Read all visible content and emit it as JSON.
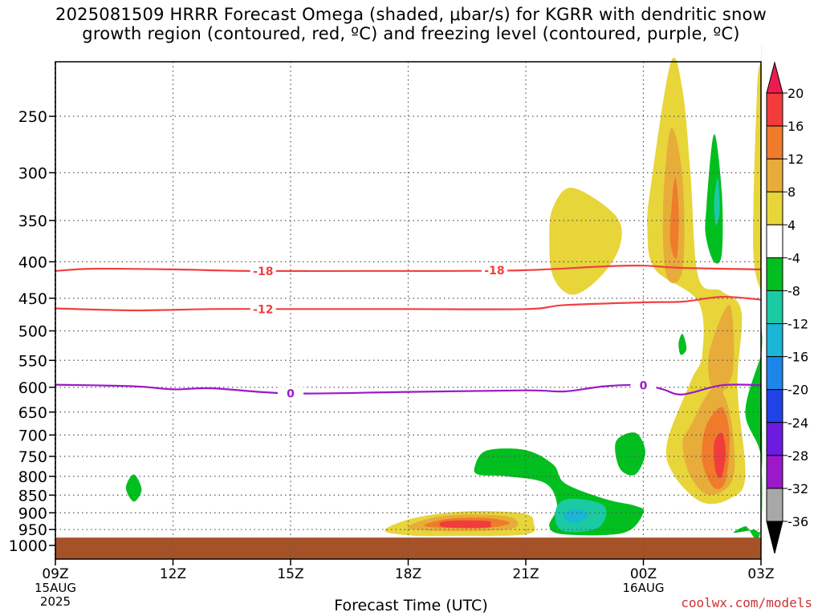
{
  "title": {
    "line1": "2025081509 HRRR Forecast Omega (shaded, μbar/s) for KGRR with dendritic snow",
    "line2": "growth region (contoured, red, ºC) and freezing level (contoured, purple, ºC)"
  },
  "watermark": "coolwx.com/models",
  "chart_data": {
    "type": "heatmap",
    "xlabel": "Forecast Time (UTC)",
    "ylabel": "",
    "x_range_hours": [
      0,
      18
    ],
    "y_range_hpa": [
      1000,
      200
    ],
    "x_ticks": [
      {
        "hour": 0,
        "label": "09Z",
        "sub1": "15AUG",
        "sub2": "2025"
      },
      {
        "hour": 3,
        "label": "12Z"
      },
      {
        "hour": 6,
        "label": "15Z"
      },
      {
        "hour": 9,
        "label": "18Z"
      },
      {
        "hour": 12,
        "label": "21Z"
      },
      {
        "hour": 15,
        "label": "00Z",
        "sub1": "16AUG"
      },
      {
        "hour": 18,
        "label": "03Z"
      }
    ],
    "y_ticks": [
      250,
      300,
      350,
      400,
      450,
      500,
      550,
      600,
      650,
      700,
      750,
      800,
      850,
      900,
      950,
      1000
    ],
    "grid": true,
    "colorbar": {
      "labels": [
        20,
        16,
        12,
        8,
        4,
        -4,
        -8,
        -12,
        -16,
        -20,
        -24,
        -28,
        -32,
        -36
      ],
      "colors": [
        "#ee1c4e",
        "#f23c3c",
        "#ef7b2b",
        "#e7ac3a",
        "#e7d53a",
        "#ffffff",
        "#00bf1e",
        "#1bc9a2",
        "#1bb5d6",
        "#1d86e8",
        "#1f43e6",
        "#6e1be0",
        "#9b19c9",
        "#a8a8a8",
        "#000000"
      ]
    },
    "contours": [
      {
        "name": "-18",
        "color": "#f04040",
        "label_at_hours": [
          5.3,
          11.2
        ],
        "points": [
          [
            0,
            412
          ],
          [
            1,
            409
          ],
          [
            3,
            410
          ],
          [
            5,
            412
          ],
          [
            8,
            412
          ],
          [
            10,
            412
          ],
          [
            12,
            411
          ],
          [
            14,
            406
          ],
          [
            15,
            405
          ],
          [
            16,
            408
          ],
          [
            18,
            410
          ]
        ]
      },
      {
        "name": "-12",
        "color": "#f04040",
        "label_at_hours": [
          5.3
        ],
        "points": [
          [
            0,
            465
          ],
          [
            2,
            468
          ],
          [
            4,
            466
          ],
          [
            6,
            466
          ],
          [
            9,
            466
          ],
          [
            12,
            466
          ],
          [
            13,
            460
          ],
          [
            15,
            456
          ],
          [
            16,
            455
          ],
          [
            17,
            448
          ],
          [
            18,
            452
          ]
        ]
      },
      {
        "name": "0",
        "color": "#9b19c9",
        "label_at_hours": [
          6.0,
          15.0
        ],
        "points": [
          [
            0,
            595
          ],
          [
            2,
            598
          ],
          [
            3,
            604
          ],
          [
            4,
            602
          ],
          [
            6,
            612
          ],
          [
            9,
            609
          ],
          [
            12,
            606
          ],
          [
            13,
            608
          ],
          [
            14,
            598
          ],
          [
            15,
            596
          ],
          [
            15.5,
            604
          ],
          [
            16,
            614
          ],
          [
            17,
            596
          ],
          [
            18,
            596
          ]
        ]
      }
    ],
    "shaded_regions": [
      {
        "omega": 4,
        "color": "#e7d53a",
        "points": [
          [
            8.4,
            953
          ],
          [
            9,
            920
          ],
          [
            10,
            900
          ],
          [
            11,
            895
          ],
          [
            12,
            903
          ],
          [
            12.2,
            930
          ],
          [
            12,
            965
          ],
          [
            10,
            970
          ],
          [
            9,
            968
          ]
        ]
      },
      {
        "omega": 8,
        "color": "#e7ac3a",
        "points": [
          [
            9,
            945
          ],
          [
            9.6,
            915
          ],
          [
            10.5,
            905
          ],
          [
            11.5,
            910
          ],
          [
            11.8,
            930
          ],
          [
            11.5,
            950
          ],
          [
            10,
            955
          ]
        ]
      },
      {
        "omega": 12,
        "color": "#ef7b2b",
        "points": [
          [
            9.4,
            938
          ],
          [
            10,
            918
          ],
          [
            11,
            915
          ],
          [
            11.6,
            930
          ],
          [
            11,
            945
          ],
          [
            10,
            945
          ]
        ]
      },
      {
        "omega": 16,
        "color": "#f23c3c",
        "points": [
          [
            9.8,
            935
          ],
          [
            10,
            924
          ],
          [
            11,
            924
          ],
          [
            11.1,
            935
          ],
          [
            11,
            944
          ],
          [
            10,
            944
          ]
        ]
      },
      {
        "omega": -4,
        "color": "#00bf1e",
        "points": [
          [
            10.7,
            775
          ],
          [
            11,
            736
          ],
          [
            12,
            735
          ],
          [
            12.7,
            770
          ],
          [
            13,
            818
          ],
          [
            14,
            860
          ],
          [
            14.8,
            880
          ],
          [
            15,
            900
          ],
          [
            14.5,
            960
          ],
          [
            13,
            965
          ],
          [
            12.6,
            940
          ],
          [
            12.8,
            880
          ],
          [
            12.5,
            818
          ],
          [
            11.5,
            800
          ],
          [
            10.8,
            796
          ]
        ]
      },
      {
        "omega": -8,
        "color": "#1bc9a2",
        "points": [
          [
            12.8,
            880
          ],
          [
            13.2,
            860
          ],
          [
            14,
            880
          ],
          [
            13.9,
            940
          ],
          [
            13.2,
            958
          ],
          [
            12.8,
            940
          ]
        ]
      },
      {
        "omega": -12,
        "color": "#1bb5d6",
        "points": [
          [
            13,
            900
          ],
          [
            13.3,
            890
          ],
          [
            13.6,
            905
          ],
          [
            13.3,
            930
          ],
          [
            13,
            920
          ]
        ]
      },
      {
        "omega": 4,
        "color": "#e7d53a",
        "points": [
          [
            12.7,
            335
          ],
          [
            13.2,
            315
          ],
          [
            14.3,
            345
          ],
          [
            14.4,
            380
          ],
          [
            13.9,
            420
          ],
          [
            13.2,
            445
          ],
          [
            12.7,
            420
          ],
          [
            12.6,
            370
          ]
        ]
      },
      {
        "omega": 4,
        "color": "#e7d53a",
        "points": [
          [
            15.2,
            310
          ],
          [
            15.7,
            210
          ],
          [
            16,
            230
          ],
          [
            16.2,
            300
          ],
          [
            16.4,
            420
          ],
          [
            17,
            440
          ],
          [
            17.5,
            470
          ],
          [
            17.4,
            600
          ],
          [
            17.6,
            800
          ],
          [
            17.2,
            860
          ],
          [
            16.5,
            870
          ],
          [
            15.8,
            800
          ],
          [
            15.6,
            720
          ],
          [
            16.2,
            590
          ],
          [
            16.5,
            540
          ],
          [
            16.4,
            455
          ],
          [
            15.3,
            410
          ],
          [
            15.1,
            360
          ]
        ]
      },
      {
        "omega": 4,
        "color": "#e7d53a",
        "points": [
          [
            17.8,
            380
          ],
          [
            17.9,
            230
          ],
          [
            18.05,
            195
          ],
          [
            18.4,
            195
          ],
          [
            18.4,
            430
          ],
          [
            18.05,
            440
          ]
        ]
      },
      {
        "omega": 8,
        "color": "#e7ac3a",
        "points": [
          [
            15.5,
            340
          ],
          [
            15.7,
            260
          ],
          [
            16,
            305
          ],
          [
            16,
            410
          ],
          [
            15.6,
            420
          ]
        ]
      },
      {
        "omega": 8,
        "color": "#e7ac3a",
        "points": [
          [
            16.2,
            680
          ],
          [
            16.8,
            600
          ],
          [
            17.2,
            650
          ],
          [
            17.3,
            800
          ],
          [
            16.7,
            850
          ],
          [
            16.2,
            800
          ],
          [
            16,
            720
          ]
        ]
      },
      {
        "omega": 8,
        "color": "#e7ac3a",
        "points": [
          [
            16.7,
            530
          ],
          [
            17.2,
            460
          ],
          [
            17.3,
            560
          ],
          [
            17,
            610
          ],
          [
            16.7,
            590
          ]
        ]
      },
      {
        "omega": 12,
        "color": "#ef7b2b",
        "points": [
          [
            15.68,
            370
          ],
          [
            15.8,
            305
          ],
          [
            15.9,
            340
          ],
          [
            15.85,
            395
          ]
        ]
      },
      {
        "omega": 12,
        "color": "#ef7b2b",
        "points": [
          [
            16.6,
            680
          ],
          [
            17,
            640
          ],
          [
            17.2,
            700
          ],
          [
            17.1,
            810
          ],
          [
            16.8,
            830
          ],
          [
            16.5,
            760
          ]
        ]
      },
      {
        "omega": 16,
        "color": "#f23c3c",
        "points": [
          [
            16.8,
            720
          ],
          [
            17,
            695
          ],
          [
            17.1,
            740
          ],
          [
            17,
            800
          ],
          [
            16.85,
            790
          ]
        ]
      },
      {
        "omega": -4,
        "color": "#00bf1e",
        "points": [
          [
            16.6,
            340
          ],
          [
            16.8,
            265
          ],
          [
            17,
            320
          ],
          [
            17,
            390
          ],
          [
            16.8,
            400
          ],
          [
            16.6,
            370
          ]
        ]
      },
      {
        "omega": -8,
        "color": "#1bc9a2",
        "points": [
          [
            16.8,
            330
          ],
          [
            16.9,
            305
          ],
          [
            16.95,
            340
          ],
          [
            16.85,
            355
          ]
        ]
      },
      {
        "omega": -4,
        "color": "#00bf1e",
        "points": [
          [
            14.3,
            715
          ],
          [
            14.8,
            695
          ],
          [
            15.05,
            740
          ],
          [
            14.8,
            795
          ],
          [
            14.4,
            780
          ]
        ]
      },
      {
        "omega": -4,
        "color": "#00bf1e",
        "points": [
          [
            15.9,
            520
          ],
          [
            16,
            505
          ],
          [
            16.1,
            530
          ],
          [
            15.95,
            540
          ]
        ]
      },
      {
        "omega": -4,
        "color": "#00bf1e",
        "points": [
          [
            1.8,
            830
          ],
          [
            2,
            795
          ],
          [
            2.2,
            835
          ],
          [
            2,
            868
          ]
        ]
      },
      {
        "omega": -4,
        "color": "#00bf1e",
        "points": [
          [
            17.6,
            650
          ],
          [
            18.05,
            540
          ],
          [
            18.4,
            520
          ],
          [
            18.4,
            940
          ],
          [
            17.6,
            940
          ],
          [
            17.3,
            960
          ],
          [
            17.8,
            950
          ],
          [
            18,
            940
          ],
          [
            18,
            750
          ]
        ]
      }
    ],
    "surface": {
      "color": "#a65229",
      "from_hpa": 975
    }
  }
}
